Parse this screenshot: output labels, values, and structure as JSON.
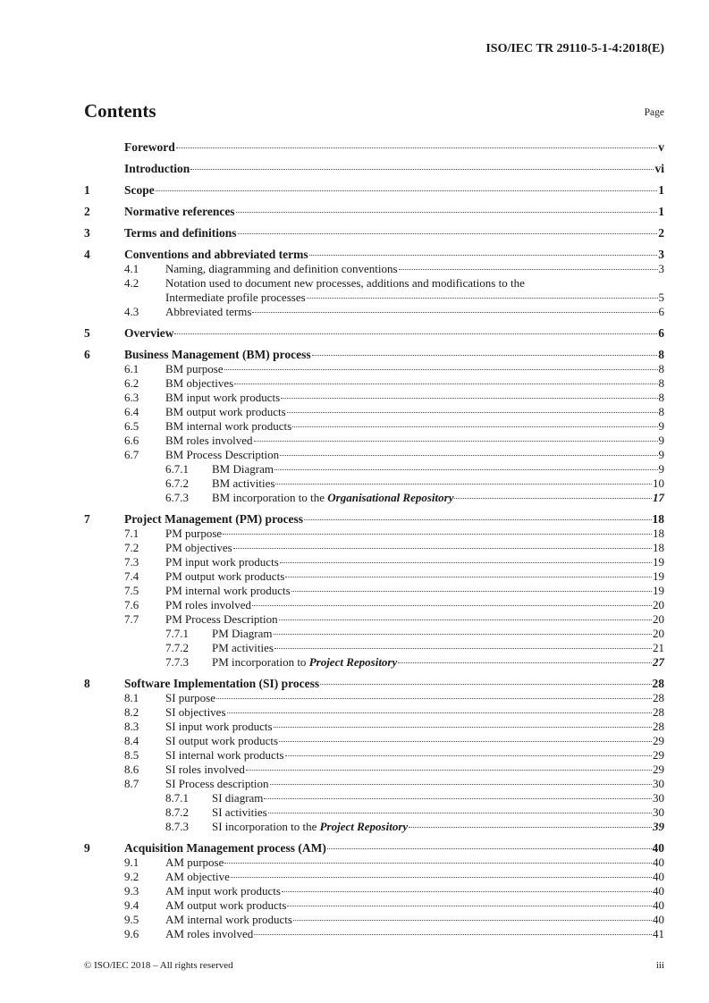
{
  "header": {
    "doc_id": "ISO/IEC TR 29110-5-1-4:2018(E)"
  },
  "contents": {
    "title": "Contents",
    "page_label": "Page"
  },
  "toc": [
    {
      "level": 0,
      "num": "",
      "title": "Foreword",
      "page": "v"
    },
    {
      "level": 0,
      "num": "",
      "title": "Introduction",
      "page": "vi"
    },
    {
      "level": 0,
      "num": "1",
      "title": "Scope",
      "page": "1"
    },
    {
      "level": 0,
      "num": "2",
      "title": "Normative references",
      "page": "1"
    },
    {
      "level": 0,
      "num": "3",
      "title": "Terms and definitions",
      "page": "2"
    },
    {
      "level": 0,
      "num": "4",
      "title": "Conventions and abbreviated terms",
      "page": "3"
    },
    {
      "level": 1,
      "num": "4.1",
      "title": "Naming, diagramming and definition conventions",
      "page": "3"
    },
    {
      "level": 1,
      "num": "4.2",
      "title": "Notation used to document new processes, additions and modifications to the",
      "page": ""
    },
    {
      "level": "cont",
      "num": "",
      "title": "Intermediate profile processes",
      "page": "5"
    },
    {
      "level": 1,
      "num": "4.3",
      "title": "Abbreviated terms",
      "page": "6"
    },
    {
      "level": 0,
      "num": "5",
      "title": "Overview",
      "page": "6"
    },
    {
      "level": 0,
      "num": "6",
      "title": "Business Management (BM) process",
      "page": "8"
    },
    {
      "level": 1,
      "num": "6.1",
      "title": "BM purpose",
      "page": "8"
    },
    {
      "level": 1,
      "num": "6.2",
      "title": "BM objectives",
      "page": "8"
    },
    {
      "level": 1,
      "num": "6.3",
      "title": "BM input work products",
      "page": "8"
    },
    {
      "level": 1,
      "num": "6.4",
      "title": "BM output work products",
      "page": "8"
    },
    {
      "level": 1,
      "num": "6.5",
      "title": "BM internal work products",
      "page": "9"
    },
    {
      "level": 1,
      "num": "6.6",
      "title": "BM roles involved",
      "page": "9"
    },
    {
      "level": 1,
      "num": "6.7",
      "title": "BM Process Description",
      "page": "9"
    },
    {
      "level": 2,
      "num": "6.7.1",
      "title": "BM Diagram",
      "page": "9"
    },
    {
      "level": 2,
      "num": "6.7.2",
      "title": "BM activities",
      "page": "10"
    },
    {
      "level": 2,
      "num": "6.7.3",
      "title": "BM incorporation to the ",
      "em": "Organisational Repository",
      "page": "17",
      "page_italic": true
    },
    {
      "level": 0,
      "num": "7",
      "title": "Project Management (PM) process",
      "page": "18"
    },
    {
      "level": 1,
      "num": "7.1",
      "title": "PM purpose",
      "page": "18"
    },
    {
      "level": 1,
      "num": "7.2",
      "title": "PM objectives",
      "page": "18"
    },
    {
      "level": 1,
      "num": "7.3",
      "title": "PM input work products",
      "page": "19"
    },
    {
      "level": 1,
      "num": "7.4",
      "title": "PM output work products",
      "page": "19"
    },
    {
      "level": 1,
      "num": "7.5",
      "title": "PM internal work products",
      "page": "19"
    },
    {
      "level": 1,
      "num": "7.6",
      "title": "PM roles involved",
      "page": "20"
    },
    {
      "level": 1,
      "num": "7.7",
      "title": "PM Process Description",
      "page": "20"
    },
    {
      "level": 2,
      "num": "7.7.1",
      "title": "PM Diagram",
      "page": "20"
    },
    {
      "level": 2,
      "num": "7.7.2",
      "title": "PM activities",
      "page": "21"
    },
    {
      "level": 2,
      "num": "7.7.3",
      "title": "PM incorporation to ",
      "em": "Project Repository",
      "page": "27",
      "page_italic": true
    },
    {
      "level": 0,
      "num": "8",
      "title": "Software Implementation (SI) process",
      "page": "28"
    },
    {
      "level": 1,
      "num": "8.1",
      "title": "SI purpose",
      "page": "28"
    },
    {
      "level": 1,
      "num": "8.2",
      "title": "SI objectives",
      "page": "28"
    },
    {
      "level": 1,
      "num": "8.3",
      "title": "SI input work products",
      "page": "28"
    },
    {
      "level": 1,
      "num": "8.4",
      "title": "SI output work products",
      "page": "29"
    },
    {
      "level": 1,
      "num": "8.5",
      "title": "SI internal work products",
      "page": "29"
    },
    {
      "level": 1,
      "num": "8.6",
      "title": "SI roles involved",
      "page": "29"
    },
    {
      "level": 1,
      "num": "8.7",
      "title": "SI Process description",
      "page": "30"
    },
    {
      "level": 2,
      "num": "8.7.1",
      "title": "SI diagram",
      "page": "30"
    },
    {
      "level": 2,
      "num": "8.7.2",
      "title": "SI activities",
      "page": "30"
    },
    {
      "level": 2,
      "num": "8.7.3",
      "title": "SI incorporation to the ",
      "em": "Project Repository",
      "page": "39",
      "page_italic": true
    },
    {
      "level": 0,
      "num": "9",
      "title": "Acquisition Management process (AM)",
      "page": "40"
    },
    {
      "level": 1,
      "num": "9.1",
      "title": "AM purpose",
      "page": "40"
    },
    {
      "level": 1,
      "num": "9.2",
      "title": "AM objective",
      "page": "40"
    },
    {
      "level": 1,
      "num": "9.3",
      "title": "AM input work products",
      "page": "40"
    },
    {
      "level": 1,
      "num": "9.4",
      "title": "AM output work products",
      "page": "40"
    },
    {
      "level": 1,
      "num": "9.5",
      "title": "AM internal work products",
      "page": "40"
    },
    {
      "level": 1,
      "num": "9.6",
      "title": "AM roles involved",
      "page": "41"
    }
  ],
  "footer": {
    "copyright": "© ISO/IEC 2018 – All rights reserved",
    "page_number": "iii"
  }
}
